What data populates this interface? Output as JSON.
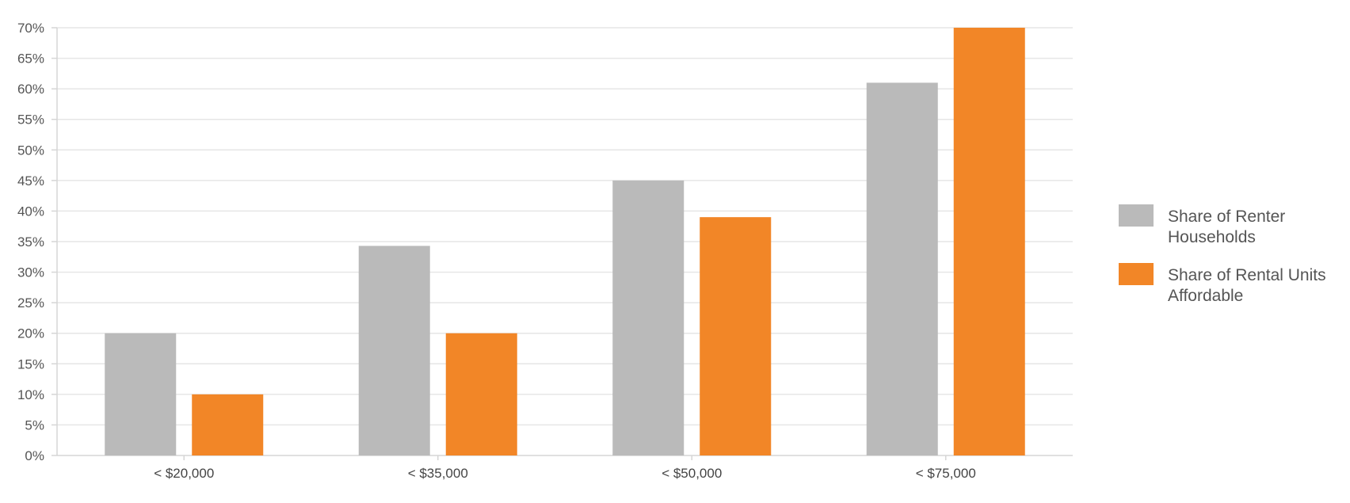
{
  "chart_data": {
    "type": "bar",
    "title": "",
    "xlabel": "",
    "ylabel": "",
    "ylim": [
      0,
      70
    ],
    "y_ticks": [
      0,
      5,
      10,
      15,
      20,
      25,
      30,
      35,
      40,
      45,
      50,
      55,
      60,
      65,
      70
    ],
    "y_tick_suffix": "%",
    "grid": true,
    "legend_position": "right",
    "categories": [
      "< $20,000",
      "< $35,000",
      "< $50,000",
      "< $75,000"
    ],
    "series": [
      {
        "name": "Share of Renter Households",
        "legend_lines": [
          "Share of Renter",
          "Households"
        ],
        "color": "#bababa",
        "values": [
          20,
          34.3,
          45,
          61
        ]
      },
      {
        "name": "Share of Rental Units Affordable",
        "legend_lines": [
          "Share of Rental Units",
          "Affordable"
        ],
        "color": "#f28627",
        "values": [
          10,
          20,
          39,
          70
        ]
      }
    ]
  }
}
